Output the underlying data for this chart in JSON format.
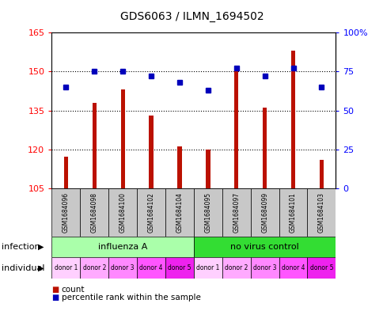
{
  "title": "GDS6063 / ILMN_1694502",
  "samples": [
    "GSM1684096",
    "GSM1684098",
    "GSM1684100",
    "GSM1684102",
    "GSM1684104",
    "GSM1684095",
    "GSM1684097",
    "GSM1684099",
    "GSM1684101",
    "GSM1684103"
  ],
  "counts": [
    117,
    138,
    143,
    133,
    121,
    120,
    152,
    136,
    158,
    116
  ],
  "percentiles": [
    65,
    75,
    75,
    72,
    68,
    63,
    77,
    72,
    77,
    65
  ],
  "ylim_left": [
    105,
    165
  ],
  "ylim_right": [
    0,
    100
  ],
  "yticks_left": [
    105,
    120,
    135,
    150,
    165
  ],
  "yticks_right": [
    0,
    25,
    50,
    75,
    100
  ],
  "yticklabels_right": [
    "0",
    "25",
    "50",
    "75",
    "100%"
  ],
  "infection_groups": [
    {
      "label": "influenza A",
      "start": 0,
      "end": 5,
      "color": "#AAFFAA"
    },
    {
      "label": "no virus control",
      "start": 5,
      "end": 10,
      "color": "#33DD33"
    }
  ],
  "individual_colors": [
    "#FFD0FF",
    "#FFAAFF",
    "#FF88FF",
    "#FF55FF",
    "#EE22EE",
    "#FFD0FF",
    "#FFAAFF",
    "#FF88FF",
    "#FF55FF",
    "#EE22EE"
  ],
  "individual_labels": [
    "donor 1",
    "donor 2",
    "donor 3",
    "donor 4",
    "donor 5",
    "donor 1",
    "donor 2",
    "donor 3",
    "donor 4",
    "donor 5"
  ],
  "bar_color": "#BB1100",
  "dot_color": "#0000BB",
  "bar_width": 0.15,
  "label_row1": "infection",
  "label_row2": "individual",
  "legend_count": "count",
  "legend_percentile": "percentile rank within the sample",
  "sample_box_color": "#C8C8C8"
}
